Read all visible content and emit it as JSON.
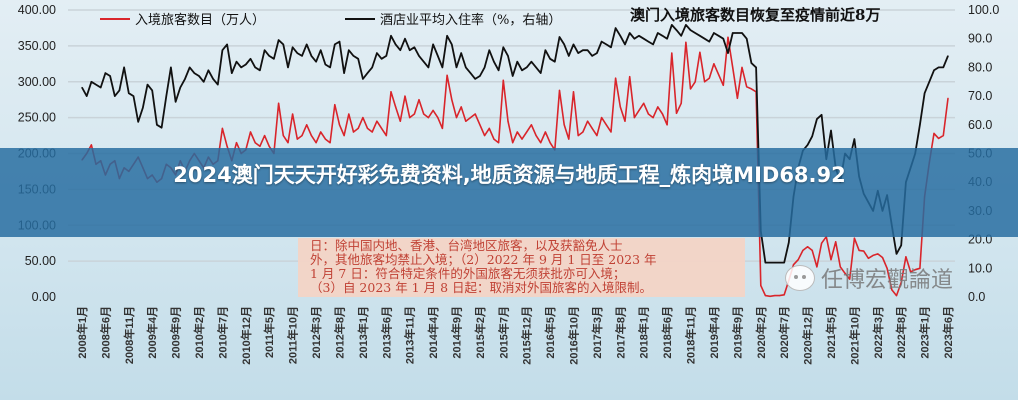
{
  "chart_data": {
    "type": "line",
    "title": "澳门入境旅客数目恢复至疫情前近8万",
    "x_range": [
      "2008-01",
      "2023-06"
    ],
    "frequency": "monthly",
    "x_ticks": [
      "2008年1月",
      "2008年6月",
      "2008年11月",
      "2009年4月",
      "2009年9月",
      "2010年2月",
      "2010年7月",
      "2010年12月",
      "2011年5月",
      "2011年10月",
      "2012年3月",
      "2012年8月",
      "2013年1月",
      "2013年6月",
      "2013年11月",
      "2014年4月",
      "2014年9月",
      "2015年2月",
      "2015年7月",
      "2015年12月",
      "2016年5月",
      "2016年10月",
      "2017年3月",
      "2017年8月",
      "2018年1月",
      "2018年6月",
      "2018年11月",
      "2019年4月",
      "2019年9月",
      "2020年2月",
      "2020年7月",
      "2020年12月",
      "2021年5月",
      "2021年10月",
      "2022年3月",
      "2022年8月",
      "2023年1月",
      "2023年6月"
    ],
    "y_left": {
      "ylim": [
        0,
        400
      ],
      "ticks": [
        "0.00",
        "50.00",
        "100.00",
        "150.00",
        "200.00",
        "250.00",
        "300.00",
        "350.00",
        "400.00"
      ]
    },
    "y_right": {
      "ylim": [
        0,
        100
      ],
      "ticks": [
        "0.0",
        "10.0",
        "20.0",
        "30.0",
        "40.0",
        "50.0",
        "60.0",
        "70.0",
        "80.0",
        "90.0",
        "100.0"
      ]
    },
    "grid": true,
    "legend_position": "top",
    "series": [
      {
        "name": "入境旅客数目（万人）",
        "axis": "left",
        "color": "#d9252b",
        "values": [
          191,
          200,
          212,
          185,
          190,
          170,
          185,
          190,
          165,
          180,
          175,
          185,
          195,
          180,
          165,
          170,
          160,
          165,
          185,
          180,
          170,
          190,
          175,
          190,
          200,
          190,
          180,
          195,
          185,
          190,
          235,
          210,
          190,
          215,
          200,
          205,
          230,
          215,
          210,
          225,
          210,
          200,
          270,
          225,
          215,
          255,
          220,
          225,
          240,
          225,
          215,
          230,
          220,
          215,
          268,
          240,
          225,
          255,
          230,
          235,
          250,
          235,
          230,
          245,
          235,
          225,
          286,
          265,
          245,
          280,
          250,
          255,
          275,
          255,
          250,
          260,
          250,
          235,
          309,
          275,
          250,
          265,
          245,
          250,
          255,
          240,
          225,
          235,
          220,
          215,
          302,
          245,
          215,
          230,
          220,
          230,
          240,
          225,
          215,
          230,
          215,
          205,
          288,
          240,
          220,
          286,
          225,
          230,
          245,
          235,
          225,
          250,
          240,
          230,
          305,
          265,
          245,
          307,
          250,
          260,
          270,
          255,
          250,
          265,
          255,
          240,
          340,
          256,
          270,
          355,
          290,
          300,
          341,
          300,
          305,
          325,
          310,
          295,
          362,
          320,
          277,
          320,
          293,
          290,
          286,
          16,
          2,
          1,
          2,
          2,
          3,
          23,
          45,
          52,
          65,
          70,
          65,
          42,
          75,
          84,
          52,
          77,
          42,
          33,
          25,
          82,
          65,
          64,
          54,
          58,
          60,
          55,
          40,
          10,
          2,
          20,
          56,
          35,
          38,
          40,
          140,
          187,
          228,
          221,
          225,
          277
        ]
      },
      {
        "name": "酒店业平均入住率（%，右轴）",
        "axis": "right",
        "color": "#111111",
        "values": [
          73,
          70,
          75,
          74,
          73,
          78,
          77,
          70,
          72,
          80,
          71,
          70,
          61,
          66,
          74,
          72,
          60,
          59,
          70,
          80,
          68,
          73,
          76,
          80,
          78,
          77,
          75,
          79,
          76,
          74,
          86,
          88,
          78,
          82,
          80,
          81,
          83,
          80,
          79,
          86,
          84,
          83,
          89.5,
          88,
          80,
          87,
          85,
          84,
          88,
          84,
          82,
          86,
          81,
          80,
          88,
          89,
          78,
          86,
          84,
          83,
          76,
          78,
          80,
          85,
          83,
          84,
          91,
          88,
          86,
          90,
          86,
          87,
          84,
          82,
          80,
          88,
          84,
          80,
          91,
          88,
          80,
          85,
          80,
          78,
          76,
          77,
          80,
          86,
          82,
          79,
          87,
          84,
          77,
          82,
          79,
          80,
          82,
          80,
          78,
          86,
          83,
          82,
          90.6,
          88,
          84,
          88,
          85,
          86,
          86,
          84,
          85,
          89,
          88,
          87,
          93.7,
          91,
          88,
          92,
          90,
          91,
          90,
          89,
          88,
          92,
          91,
          90,
          94.8,
          93,
          91,
          94.8,
          93,
          92,
          91,
          90,
          89,
          92,
          91,
          90,
          85,
          92,
          92,
          92,
          90,
          81.5,
          80,
          23,
          12,
          12,
          12,
          12,
          12,
          19,
          35,
          45,
          51,
          53,
          56,
          62,
          63.5,
          48,
          58,
          45,
          40,
          50,
          48,
          55,
          42,
          36,
          33,
          30,
          37,
          30,
          35.5,
          25,
          15,
          18,
          40,
          45,
          50,
          60,
          71,
          75,
          79,
          80,
          80,
          84
        ]
      }
    ],
    "annotation_lines": [
      "日：除中国内地、香港、台湾地区旅客，以及获豁免人士",
      "外，其他旅客均禁止入境；（2）2022 年 9 月 1 日至 2023 年",
      "1 月 7 日：符合特定条件的外国旅客无须获批亦可入境；",
      "（3）自 2023 年 1 月 8 日起：取消对外国旅客的入境限制。"
    ]
  },
  "banner": {
    "text": "2024澳门天天开好彩免费资料,地质资源与地质工程_炼肉境MID68.92",
    "color": "#266ca0"
  },
  "watermark": {
    "text": "任博宏觀論道",
    "icon": "wechat-icon"
  }
}
